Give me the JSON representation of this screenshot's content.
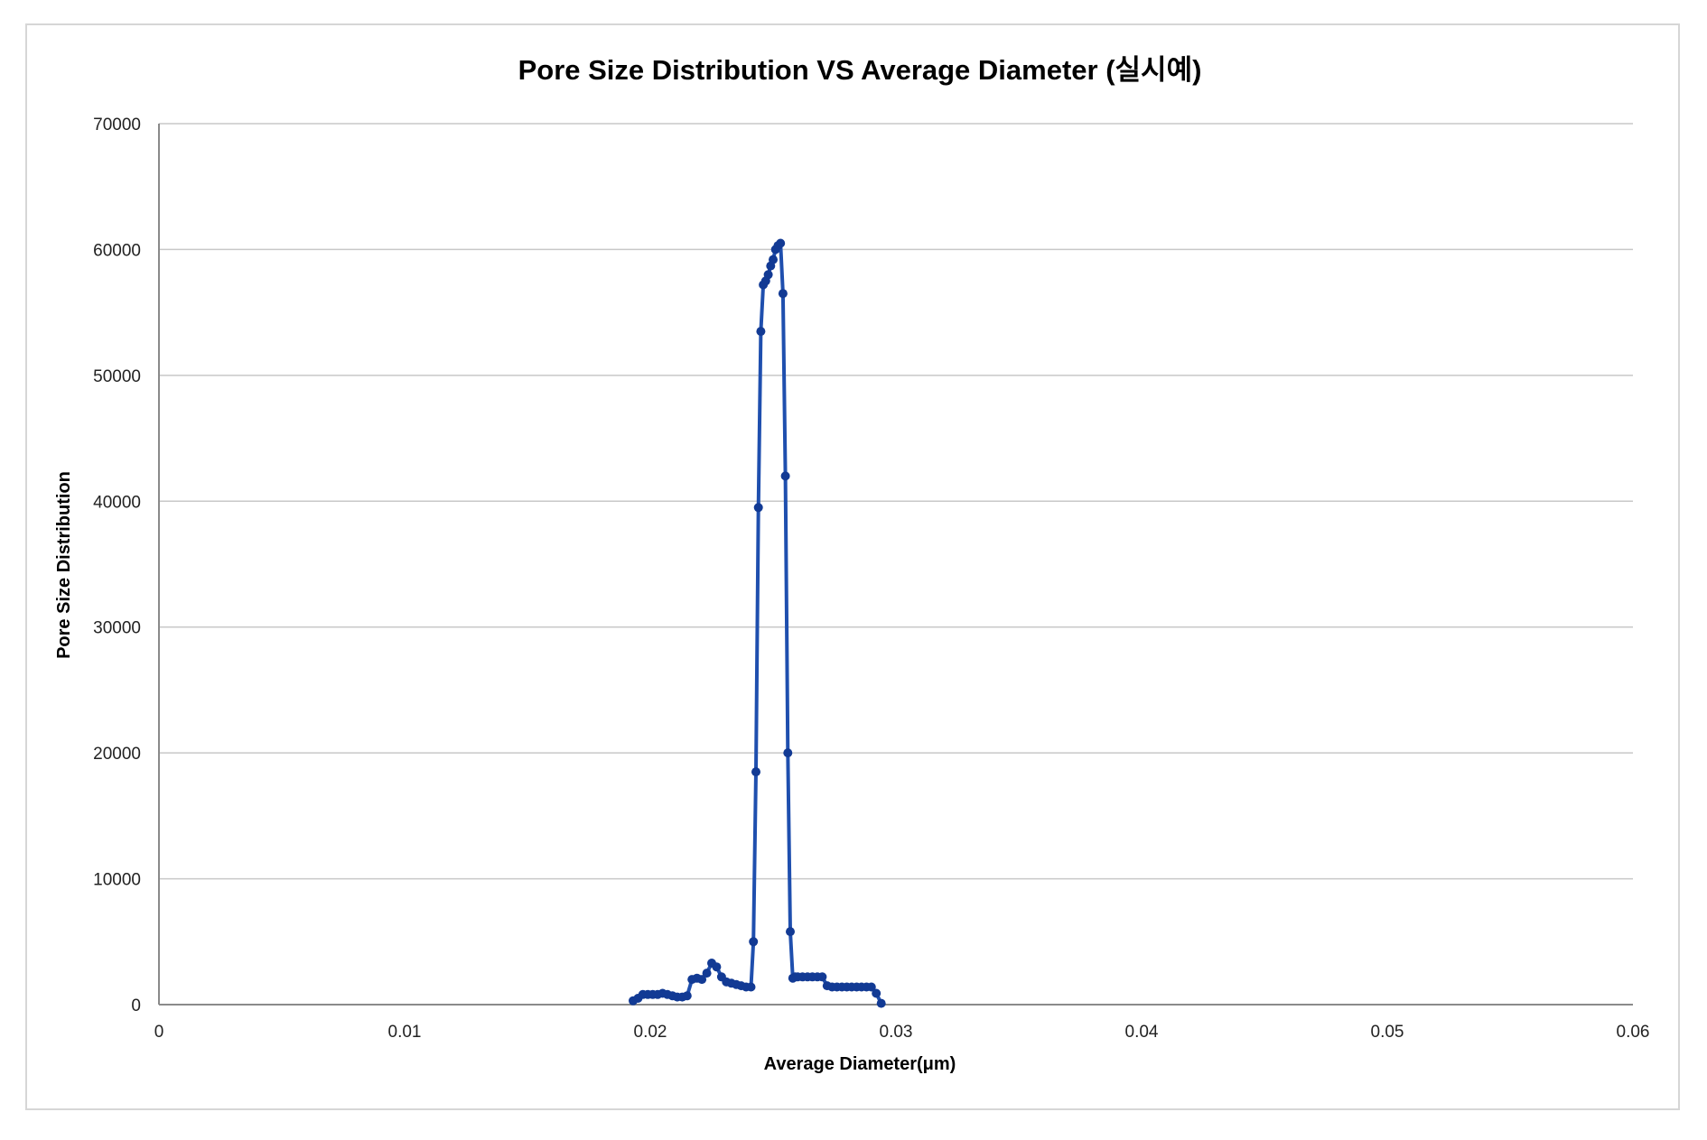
{
  "chart_data": {
    "type": "scatter",
    "title": "Pore Size Distribution VS Average Diameter (실시예)",
    "xlabel": "Average Diameter(μm)",
    "ylabel": "Pore Size Distribution",
    "xlim": [
      0,
      0.06
    ],
    "ylim": [
      0,
      70000
    ],
    "x_ticks": [
      0,
      0.01,
      0.02,
      0.03,
      0.04,
      0.05,
      0.06
    ],
    "x_tick_labels": [
      "0",
      "0.01",
      "0.02",
      "0.03",
      "0.04",
      "0.05",
      "0.06"
    ],
    "y_ticks": [
      0,
      10000,
      20000,
      30000,
      40000,
      50000,
      60000,
      70000
    ],
    "y_tick_labels": [
      "0",
      "10000",
      "20000",
      "30000",
      "40000",
      "50000",
      "60000",
      "70000"
    ],
    "grid": true,
    "legend": "none",
    "series": [
      {
        "color": "#1f4fae",
        "x": [
          0.0193,
          0.0195,
          0.0197,
          0.0199,
          0.0201,
          0.0203,
          0.0205,
          0.0207,
          0.0209,
          0.0211,
          0.0213,
          0.0215,
          0.0217,
          0.0219,
          0.0221,
          0.0223,
          0.0225,
          0.0227,
          0.0229,
          0.0231,
          0.0233,
          0.0235,
          0.0237,
          0.0239,
          0.0241,
          0.0242,
          0.0243,
          0.0244,
          0.0245,
          0.0246,
          0.0247,
          0.0248,
          0.0249,
          0.025,
          0.0251,
          0.0252,
          0.0253,
          0.0254,
          0.0255,
          0.0256,
          0.0257,
          0.0258,
          0.0259,
          0.026,
          0.0262,
          0.0264,
          0.0266,
          0.0268,
          0.027,
          0.0272,
          0.0274,
          0.0276,
          0.0278,
          0.028,
          0.0282,
          0.0284,
          0.0286,
          0.0288,
          0.029,
          0.0292,
          0.0294
        ],
        "y": [
          300,
          500,
          800,
          800,
          800,
          800,
          900,
          800,
          700,
          600,
          600,
          700,
          2000,
          2100,
          2000,
          2500,
          3300,
          3000,
          2200,
          1800,
          1700,
          1600,
          1500,
          1400,
          1400,
          5000,
          18500,
          39500,
          53500,
          57200,
          57500,
          58000,
          58700,
          59200,
          60000,
          60300,
          60500,
          56500,
          42000,
          20000,
          5800,
          2100,
          2200,
          2200,
          2200,
          2200,
          2200,
          2200,
          2200,
          1500,
          1400,
          1400,
          1400,
          1400,
          1400,
          1400,
          1400,
          1400,
          1400,
          900,
          100
        ]
      }
    ]
  }
}
